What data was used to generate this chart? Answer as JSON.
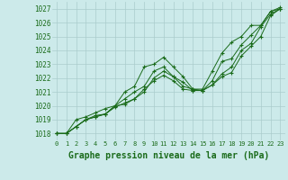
{
  "x": [
    0,
    1,
    2,
    3,
    4,
    5,
    6,
    7,
    8,
    9,
    10,
    11,
    12,
    13,
    14,
    15,
    16,
    17,
    18,
    19,
    20,
    21,
    22,
    23
  ],
  "line1": [
    1018,
    1018,
    1018.5,
    1019,
    1019.2,
    1019.4,
    1020.0,
    1021.0,
    1021.4,
    1022.8,
    1023.0,
    1023.5,
    1022.8,
    1022.1,
    1021.2,
    1021.1,
    1021.5,
    1022.3,
    1022.8,
    1024.0,
    1024.5,
    1025.7,
    1026.6,
    1027.0
  ],
  "line2": [
    1018,
    1018,
    1018.5,
    1019.0,
    1019.3,
    1019.4,
    1020.0,
    1020.1,
    1020.5,
    1021.2,
    1021.8,
    1022.2,
    1021.8,
    1021.2,
    1021.1,
    1021.1,
    1021.5,
    1022.1,
    1022.4,
    1023.6,
    1024.3,
    1025.0,
    1026.5,
    1027.0
  ],
  "line3": [
    1018,
    1018,
    1019.0,
    1019.2,
    1019.5,
    1019.8,
    1020.0,
    1020.5,
    1021.0,
    1021.4,
    1022.5,
    1022.8,
    1022.1,
    1021.4,
    1021.2,
    1021.2,
    1022.5,
    1023.8,
    1024.6,
    1025.0,
    1025.8,
    1025.8,
    1026.8,
    1027.1
  ],
  "line4": [
    1018,
    1018,
    1018.5,
    1019.0,
    1019.2,
    1019.4,
    1019.9,
    1020.2,
    1020.5,
    1021.0,
    1022.0,
    1022.5,
    1022.1,
    1021.7,
    1021.1,
    1021.1,
    1021.8,
    1023.2,
    1023.4,
    1024.4,
    1025.1,
    1025.8,
    1026.8,
    1027.0
  ],
  "ylim": [
    1017.5,
    1027.5
  ],
  "yticks": [
    1018,
    1019,
    1020,
    1021,
    1022,
    1023,
    1024,
    1025,
    1026,
    1027
  ],
  "xticks": [
    0,
    1,
    2,
    3,
    4,
    5,
    6,
    7,
    8,
    9,
    10,
    11,
    12,
    13,
    14,
    15,
    16,
    17,
    18,
    19,
    20,
    21,
    22,
    23
  ],
  "line_color": "#1a6b1a",
  "bg_color": "#cceaea",
  "grid_color": "#aacccc",
  "xlabel": "Graphe pression niveau de la mer (hPa)",
  "marker": "+",
  "markersize": 3.5,
  "linewidth": 0.7
}
